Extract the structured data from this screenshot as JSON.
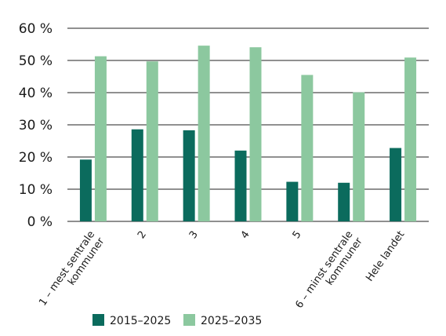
{
  "chart_data": {
    "type": "bar",
    "categories": [
      "1 – mest sentrale kommuner",
      "2",
      "3",
      "4",
      "5",
      "6 – minst sentrale kommuner",
      "Hele landet"
    ],
    "category_lines": [
      [
        "1 – mest sentrale",
        "kommuner"
      ],
      [
        "2"
      ],
      [
        "3"
      ],
      [
        "4"
      ],
      [
        "5"
      ],
      [
        "6 – minst sentrale",
        "kommuner"
      ],
      [
        "Hele landet"
      ]
    ],
    "series": [
      {
        "name": "2015–2025",
        "color": "#0b6b5d",
        "values": [
          19.2,
          28.6,
          28.3,
          22.0,
          12.3,
          12.0,
          22.8
        ]
      },
      {
        "name": "2025–2035",
        "color": "#8cc89f",
        "values": [
          51.3,
          49.7,
          54.6,
          54.1,
          45.5,
          40.1,
          50.9
        ]
      }
    ],
    "ylim": [
      0,
      60
    ],
    "yticks": [
      0,
      10,
      20,
      30,
      40,
      50,
      60
    ],
    "ytick_labels": [
      "0 %",
      "10 %",
      "20 %",
      "30 %",
      "40 %",
      "50 %",
      "60 %"
    ],
    "grid": true,
    "legend_position": "bottom-center"
  }
}
